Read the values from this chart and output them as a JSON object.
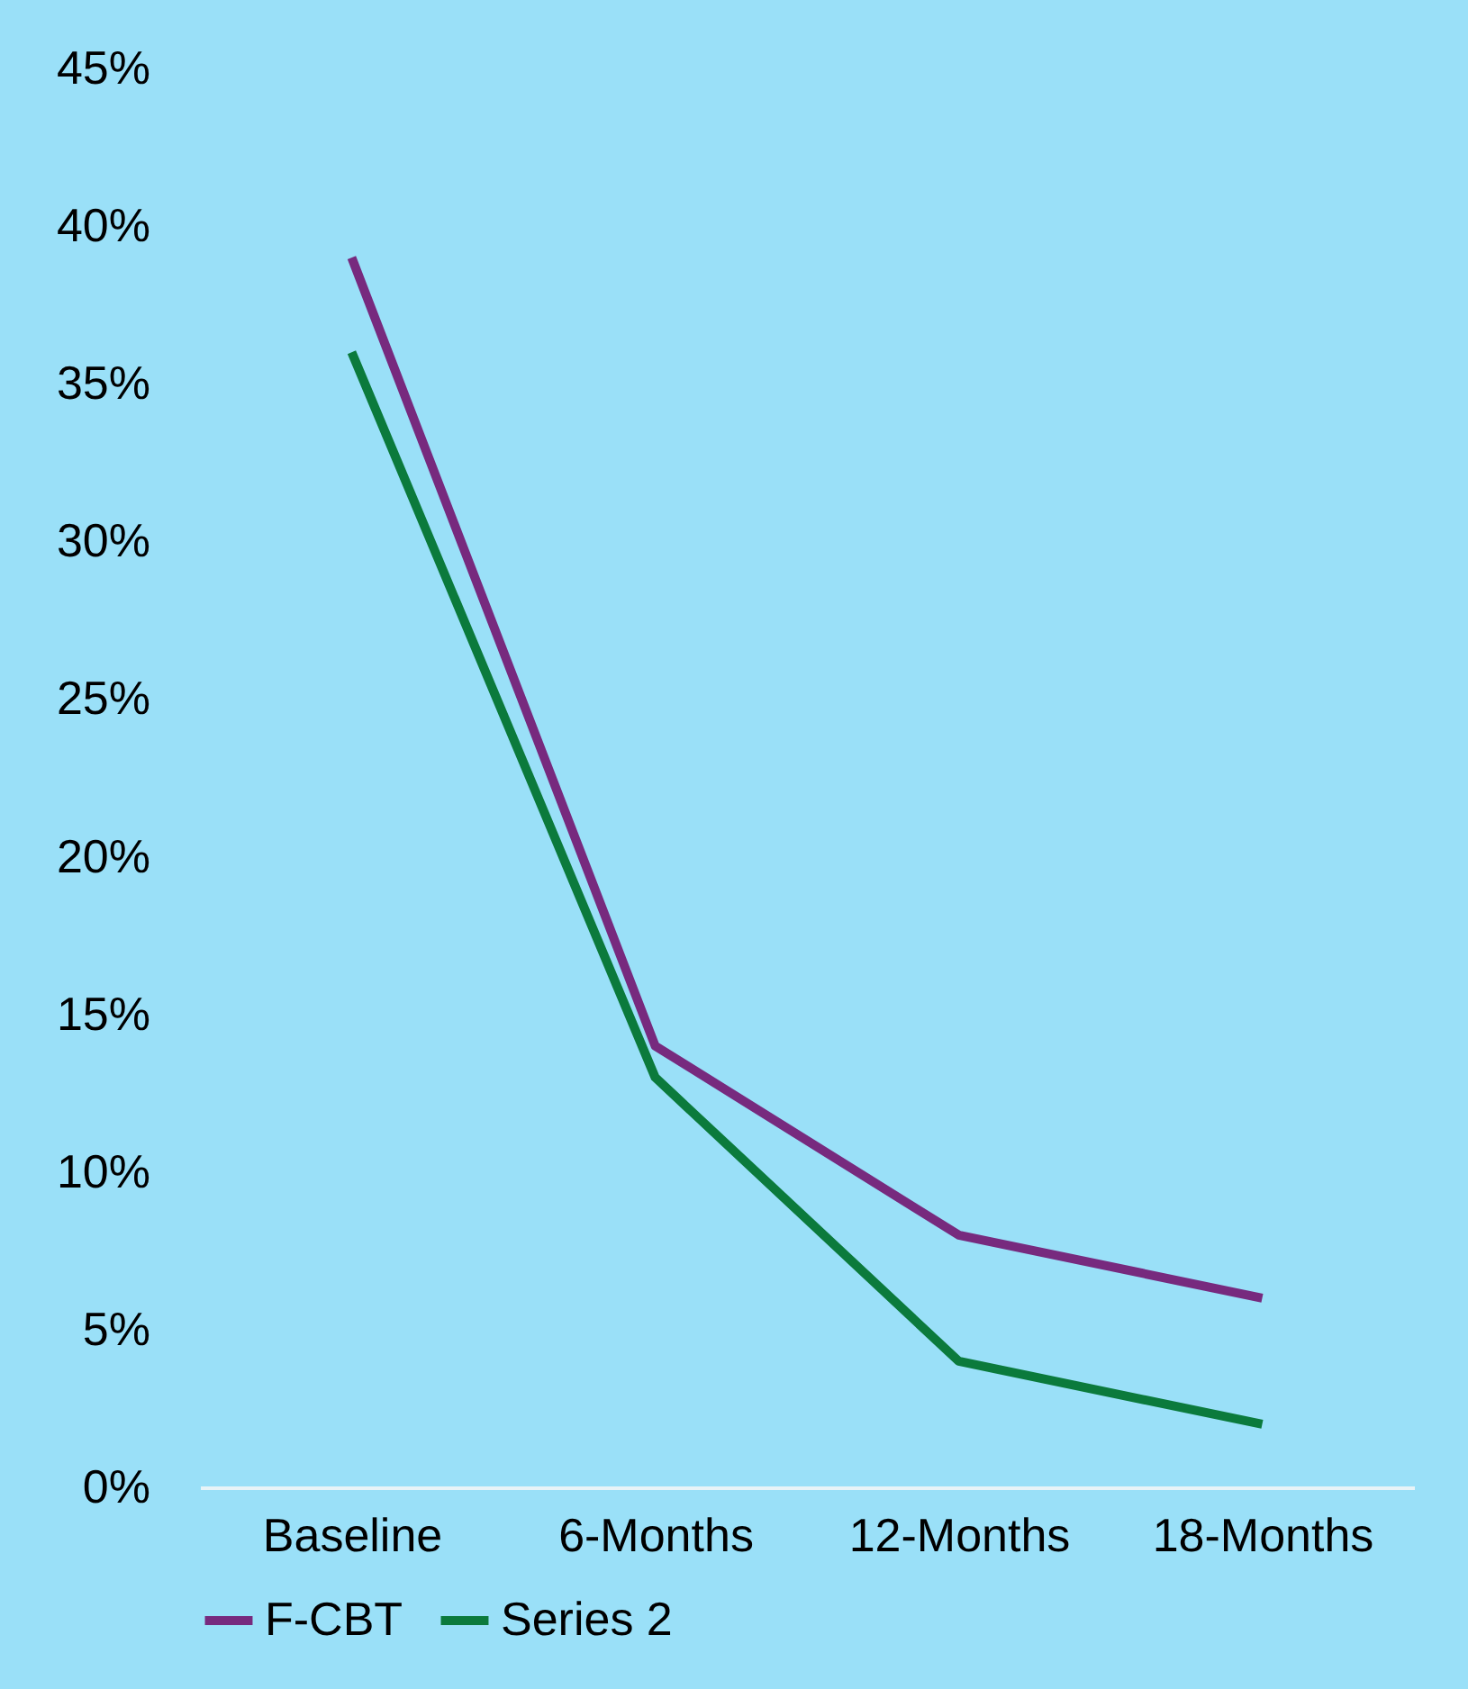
{
  "chart_data": {
    "type": "line",
    "categories": [
      "Baseline",
      "6-Months",
      "12-Months",
      "18-Months"
    ],
    "series": [
      {
        "name": "F-CBT",
        "color": "#772a7e",
        "values": [
          39,
          14,
          8,
          6
        ]
      },
      {
        "name": "Series 2",
        "color": "#0b7a3c",
        "values": [
          36,
          13,
          4,
          2
        ]
      }
    ],
    "ylim": [
      0,
      45
    ],
    "yticks": [
      {
        "value": 0,
        "label": "0%"
      },
      {
        "value": 5,
        "label": "5%"
      },
      {
        "value": 10,
        "label": "10%"
      },
      {
        "value": 15,
        "label": "15%"
      },
      {
        "value": 20,
        "label": "20%"
      },
      {
        "value": 25,
        "label": "25%"
      },
      {
        "value": 30,
        "label": "30%"
      },
      {
        "value": 35,
        "label": "35%"
      },
      {
        "value": 40,
        "label": "40%"
      },
      {
        "value": 45,
        "label": "45%"
      }
    ],
    "grid": false,
    "legend": "bottom",
    "marker": "none"
  }
}
